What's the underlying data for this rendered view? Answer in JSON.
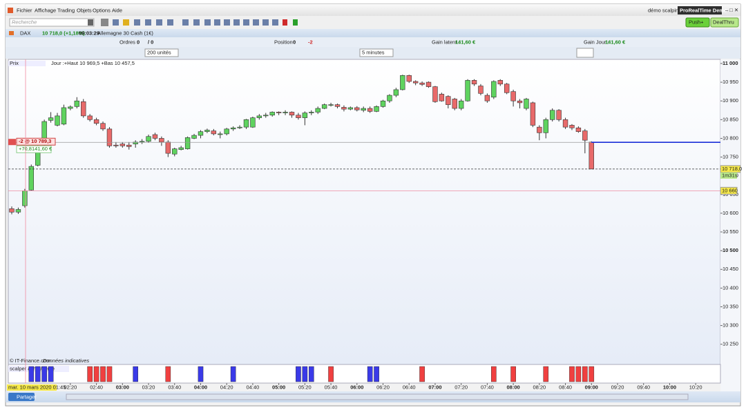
{
  "menu": [
    "Fichier",
    "Affichage",
    "Trading",
    "Objets",
    "Options",
    "Aide"
  ],
  "window": {
    "account": "démo scalping",
    "product": "ProRealTime Demo"
  },
  "toolbar": {
    "search_placeholder": "Recherche"
  },
  "buttons": {
    "push": "Push+",
    "dealthru": "DealThru",
    "share": "Partager"
  },
  "instrument": {
    "symbol": "DAX",
    "quote": "10 718,0 (+1,18%)",
    "time": "09:03:29",
    "name": "Allemagne 30 Cash (1€)"
  },
  "info_bar": {
    "orders_label": "Ordres :",
    "orders_value": "0",
    "orders_total": "/ 0",
    "position_label": "Position :",
    "position_value": "0",
    "position_qty": "-2",
    "latent_label": "Gain latent :",
    "latent_value": "141,60 €",
    "day_label": "Gain Jour :",
    "day_value": "141,60 €"
  },
  "controls": {
    "units": "200 unités",
    "period": "5 minutes"
  },
  "chart_data": {
    "type": "candlestick",
    "title": "Prix",
    "subtitle": "Jour :+Haut 10 969,5 +Bas 10 457,5",
    "source": "© IT-Finance.com",
    "source_note": "Données indicatives",
    "up_color": "#5fd35f",
    "down_color": "#e86a6a",
    "categories": [
      null,
      null,
      null,
      null,
      null,
      null,
      null,
      null,
      null,
      "02:20",
      null,
      null,
      null,
      "02:40",
      null,
      null,
      null,
      "03:00",
      null,
      null,
      null,
      "03:20",
      null,
      null,
      null,
      "03:40",
      null,
      null,
      null,
      "04:00",
      null,
      null,
      null,
      "04:20",
      null,
      null,
      null,
      "04:40",
      null,
      null,
      null,
      "05:00",
      null,
      null,
      null,
      "05:20",
      null,
      null,
      null,
      "05:40",
      null,
      null,
      null,
      "06:00",
      null,
      null,
      null,
      "06:20",
      null,
      null,
      null,
      "06:40",
      null,
      null,
      null,
      "07:00",
      null,
      null,
      null,
      "07:20",
      null,
      null,
      null,
      "07:40",
      null,
      null,
      null,
      "08:00",
      null,
      null,
      null,
      "08:20",
      null,
      null,
      null,
      "08:40",
      null,
      null,
      null,
      "09:00",
      null,
      null,
      null,
      "09:20",
      null,
      null,
      null,
      "09:40",
      null,
      null,
      null,
      "10:00",
      null,
      null,
      null,
      "10:20",
      null,
      null
    ],
    "open": [
      10612,
      10603,
      10620,
      10662,
      10728,
      10785,
      10848,
      10835,
      10838,
      10880,
      10885,
      10898,
      10860,
      10850,
      10840,
      10825,
      10782,
      10785,
      10782,
      10785,
      10790,
      10792,
      10810,
      10800,
      10790,
      10758,
      10770,
      10772,
      10800,
      10808,
      10818,
      10820,
      10810,
      10812,
      10825,
      10828,
      10830,
      10830,
      10855,
      10860,
      10862,
      10870,
      10868,
      10870,
      10862,
      10855,
      10868,
      10870,
      10880,
      10890,
      10890,
      10883,
      10878,
      10882,
      10875,
      10880,
      10872,
      10885,
      10900,
      10915,
      10930,
      10968,
      10952,
      10948,
      10950,
      10938,
      10918,
      10912,
      10905,
      10880,
      10900,
      10955,
      10940,
      10915,
      10910,
      10955,
      10945,
      10925,
      10900,
      10880,
      10895,
      10830,
      10815,
      10850,
      10875,
      10850,
      10835,
      10828,
      10820,
      10790,
      null,
      null,
      null,
      null,
      null,
      null,
      null,
      null,
      null,
      null,
      null,
      null,
      null,
      null,
      null,
      null,
      null,
      null
    ],
    "high": [
      10618,
      10615,
      10665,
      10730,
      10785,
      10850,
      10870,
      10868,
      10890,
      10888,
      10910,
      10905,
      10865,
      10855,
      10845,
      10830,
      10790,
      10790,
      10790,
      10795,
      10798,
      10810,
      10815,
      10805,
      10795,
      10775,
      10780,
      10805,
      10812,
      10822,
      10826,
      10825,
      10818,
      10828,
      10832,
      10835,
      10852,
      10858,
      10865,
      10868,
      10872,
      10872,
      10875,
      10872,
      10868,
      10872,
      10875,
      10885,
      10893,
      10895,
      10893,
      10888,
      10885,
      10886,
      10885,
      10885,
      10888,
      10903,
      10918,
      10935,
      10970,
      10970,
      10955,
      10952,
      10952,
      10940,
      10922,
      10915,
      10908,
      10905,
      10958,
      10958,
      10945,
      10920,
      10955,
      10958,
      10948,
      10930,
      10905,
      10908,
      10898,
      10835,
      10855,
      10880,
      10878,
      10855,
      10838,
      10832,
      10825,
      10792,
      null,
      null,
      null,
      null,
      null,
      null,
      null,
      null,
      null,
      null,
      null,
      null,
      null,
      null,
      null,
      null,
      null,
      null
    ],
    "low": [
      10597,
      10598,
      10615,
      10660,
      10725,
      10780,
      10842,
      10832,
      10835,
      10875,
      10880,
      10855,
      10845,
      10835,
      10820,
      10775,
      10775,
      10775,
      10770,
      10775,
      10785,
      10788,
      10795,
      10780,
      10750,
      10752,
      10768,
      10770,
      10798,
      10800,
      10814,
      10808,
      10800,
      10808,
      10820,
      10825,
      10825,
      10828,
      10850,
      10855,
      10858,
      10862,
      10862,
      10855,
      10850,
      10835,
      10862,
      10865,
      10878,
      10885,
      10880,
      10872,
      10875,
      10872,
      10870,
      10868,
      10870,
      10882,
      10895,
      10910,
      10928,
      10948,
      10942,
      10940,
      10935,
      10895,
      10898,
      10880,
      10875,
      10875,
      10898,
      10940,
      10915,
      10895,
      10905,
      10940,
      10918,
      10885,
      10880,
      10875,
      10830,
      10795,
      10800,
      10845,
      10845,
      10825,
      10822,
      10815,
      10760,
      10718,
      null,
      null,
      null,
      null,
      null,
      null,
      null,
      null,
      null,
      null,
      null,
      null,
      null,
      null,
      null,
      null,
      null,
      null
    ],
    "close": [
      10603,
      10610,
      10660,
      10725,
      10780,
      10845,
      10855,
      10860,
      10882,
      10884,
      10900,
      10860,
      10850,
      10840,
      10825,
      10780,
      10780,
      10780,
      10778,
      10790,
      10792,
      10805,
      10800,
      10790,
      10760,
      10772,
      10775,
      10802,
      10808,
      10818,
      10822,
      10812,
      10812,
      10825,
      10828,
      10830,
      10850,
      10855,
      10860,
      10862,
      10870,
      10868,
      10870,
      10862,
      10855,
      10868,
      10870,
      10880,
      10890,
      10890,
      10885,
      10878,
      10882,
      10876,
      10880,
      10872,
      10885,
      10900,
      10915,
      10930,
      10968,
      10952,
      10948,
      10944,
      10938,
      10898,
      10900,
      10890,
      10880,
      10900,
      10955,
      10945,
      10920,
      10900,
      10952,
      10945,
      10922,
      10900,
      10895,
      10905,
      10835,
      10815,
      10850,
      10875,
      10850,
      10830,
      10828,
      10818,
      10795,
      10718,
      null,
      null,
      null,
      null,
      null,
      null,
      null,
      null,
      null,
      null,
      null,
      null,
      null,
      null,
      null,
      null,
      null,
      null
    ],
    "ylim": [
      10196,
      11011
    ],
    "yticks": [
      {
        "value": 10250,
        "label": "10 250"
      },
      {
        "value": 10300,
        "label": "10 300"
      },
      {
        "value": 10350,
        "label": "10 350"
      },
      {
        "value": 10400,
        "label": "10 400"
      },
      {
        "value": 10450,
        "label": "10 450"
      },
      {
        "value": 10500,
        "label": "10 500"
      },
      {
        "value": 10550,
        "label": "10 550"
      },
      {
        "value": 10600,
        "label": "10 600"
      },
      {
        "value": 10650,
        "label": "10 650"
      },
      {
        "value": 10700,
        "label": "10 700"
      },
      {
        "value": 10750,
        "label": "10 750"
      },
      {
        "value": 10800,
        "label": "10 800"
      },
      {
        "value": 10850,
        "label": "10 850"
      },
      {
        "value": 10900,
        "label": "10 900"
      },
      {
        "value": 10950,
        "label": "10 950"
      },
      {
        "value": 11000,
        "label": "11 000"
      }
    ],
    "order_line": {
      "value": 10789.3,
      "label": "-2 @ 10 789,3",
      "pnl": "+70,8",
      "gain": "141,60 €",
      "color": "#1a2ed8"
    },
    "price_line": {
      "value": 10718,
      "label": "10 718,0",
      "timer": "1m31s"
    },
    "crosshair": {
      "value": 10660,
      "label": "10 660",
      "date": "mar. 10 mars 2020 01:45",
      "color": "#f08aa0"
    },
    "indicator": {
      "title": "scalper achat/vente",
      "buy_color": "#3a3ae8",
      "sell_color": "#f04040",
      "values": [
        null,
        null,
        null,
        1,
        1,
        1,
        1,
        null,
        null,
        null,
        null,
        null,
        -1,
        -1,
        -1,
        -1,
        null,
        null,
        null,
        1,
        null,
        null,
        null,
        null,
        -1,
        null,
        null,
        null,
        null,
        1,
        null,
        null,
        null,
        null,
        1,
        null,
        null,
        null,
        null,
        null,
        null,
        null,
        null,
        null,
        1,
        1,
        1,
        null,
        null,
        -1,
        null,
        null,
        null,
        null,
        null,
        1,
        1,
        null,
        null,
        null,
        null,
        null,
        null,
        -1,
        null,
        null,
        null,
        null,
        null,
        null,
        null,
        null,
        null,
        null,
        -1,
        null,
        null,
        -1,
        null,
        null,
        null,
        null,
        -1,
        null,
        null,
        null,
        -1,
        -1,
        -1,
        -1,
        null,
        null,
        null,
        null,
        null,
        null,
        null,
        null,
        null,
        null,
        null,
        null,
        null,
        null,
        null,
        null,
        null,
        null
      ]
    }
  }
}
